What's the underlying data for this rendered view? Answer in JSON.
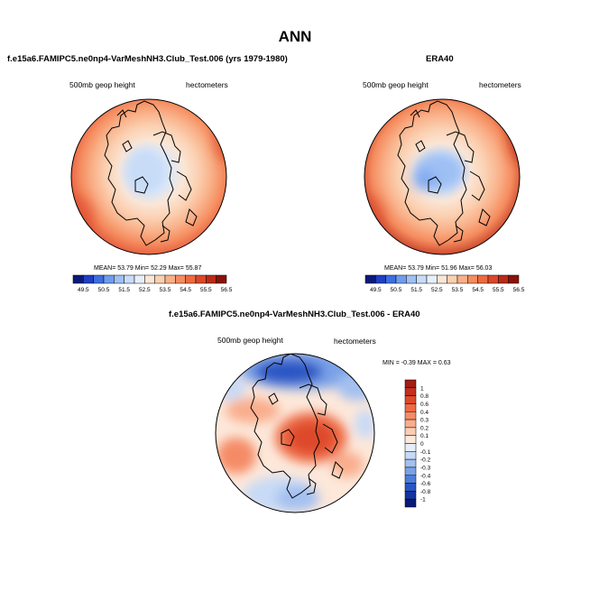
{
  "page": {
    "title": "ANN"
  },
  "panels": [
    {
      "id": "model",
      "title": "f.e15a6.FAMIPC5.ne0np4-VarMeshNH3.Club_Test.006 (yrs 1979-1980)",
      "left_label": "500mb geop height",
      "right_label": "hectometers",
      "stats": {
        "mean_label": "MEAN=",
        "mean": "53.79",
        "min_label": "Min=",
        "min": "52.29",
        "max_label": "Max=",
        "max": "55.87"
      }
    },
    {
      "id": "obs",
      "title": "ERA40",
      "left_label": "500mb geop height",
      "right_label": "hectometers",
      "stats": {
        "mean_label": "MEAN=",
        "mean": "53.79",
        "min_label": "Min=",
        "min": "51.96",
        "max_label": "Max=",
        "max": "56.03"
      }
    },
    {
      "id": "diff",
      "title": "f.e15a6.FAMIPC5.ne0np4-VarMeshNH3.Club_Test.006 - ERA40",
      "left_label": "500mb geop height",
      "right_label": "hectometers",
      "stats": {
        "min_label": "MIN =",
        "min": "-0.39",
        "max_label": "MAX =",
        "max": "0.63"
      }
    }
  ],
  "colorbars": {
    "horizontal": {
      "labels": [
        "49.5",
        "50.5",
        "51.5",
        "52.5",
        "53.5",
        "54.5",
        "55.5",
        "56.5"
      ],
      "colors": [
        "#0b1a7a",
        "#1f3fc4",
        "#3d6fe0",
        "#6f9cee",
        "#9fc0f4",
        "#c8dcf8",
        "#e7eff9",
        "#fbe6d6",
        "#fbcfb0",
        "#f9b088",
        "#f58c5f",
        "#ee6a3e",
        "#db4728",
        "#bb2a19",
        "#8a1208"
      ]
    },
    "vertical": {
      "labels": [
        "1",
        "0.8",
        "0.6",
        "0.4",
        "0.3",
        "0.2",
        "0.1",
        "0",
        "-0.1",
        "-0.2",
        "-0.3",
        "-0.4",
        "-0.6",
        "-0.8",
        "-1"
      ],
      "colors": [
        "#a31d12",
        "#c4301c",
        "#dd4a2b",
        "#ee6b45",
        "#f58b66",
        "#f9ad8c",
        "#fbcdb3",
        "#fde8da",
        "#e5eefa",
        "#c7daf6",
        "#a3c0f0",
        "#7aa2e8",
        "#4f7ddb",
        "#2a56c4",
        "#1434a0",
        "#0a1a78"
      ]
    }
  }
}
